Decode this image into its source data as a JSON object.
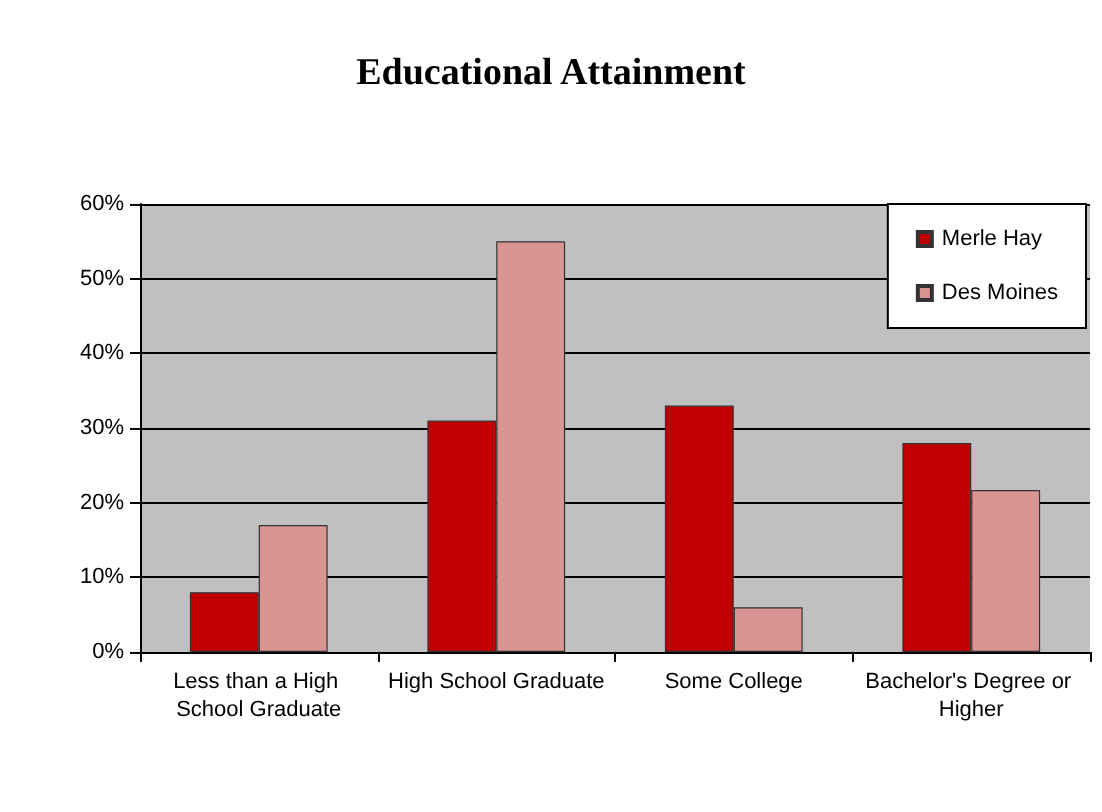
{
  "chart_data": {
    "type": "bar",
    "title": "Educational Attainment",
    "categories": [
      "Less than a High School Graduate",
      "High School Graduate",
      "Some College",
      "Bachelor's Degree or Higher"
    ],
    "series": [
      {
        "name": "Merle Hay",
        "color": "#c00000",
        "values": [
          8,
          31,
          33,
          28
        ]
      },
      {
        "name": "Des Moines",
        "color": "#d99594",
        "values": [
          17,
          55,
          6,
          21.7
        ]
      }
    ],
    "ylim": [
      0,
      60
    ],
    "yticks": [
      {
        "value": 0,
        "label": "0%"
      },
      {
        "value": 10,
        "label": "10%"
      },
      {
        "value": 20,
        "label": "20%"
      },
      {
        "value": 30,
        "label": "30%"
      },
      {
        "value": 40,
        "label": "40%"
      },
      {
        "value": 50,
        "label": "50%"
      },
      {
        "value": 60,
        "label": "60%"
      }
    ],
    "grid": "y",
    "legend": "top right"
  }
}
